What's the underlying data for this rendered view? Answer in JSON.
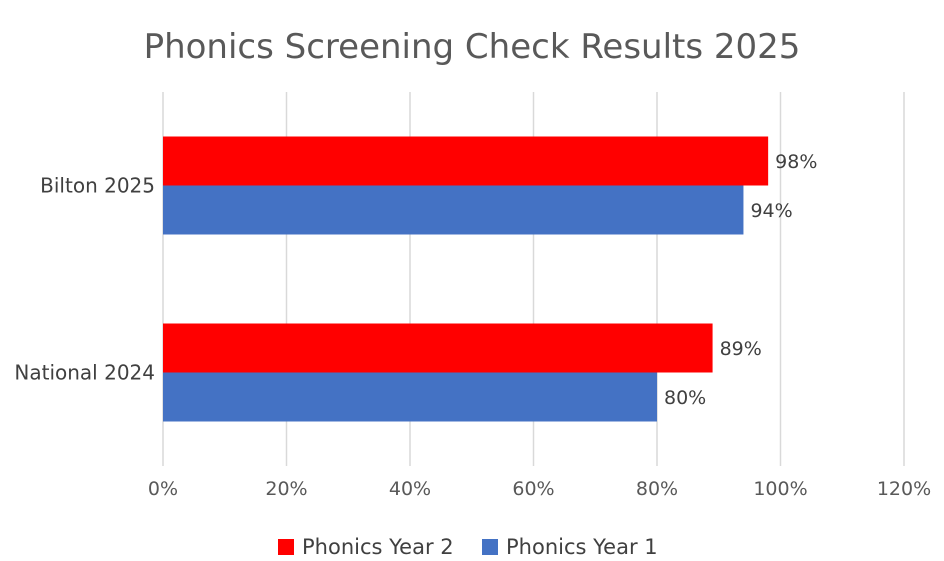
{
  "chart_data": {
    "type": "bar",
    "orientation": "horizontal",
    "title": "Phonics Screening Check Results 2025",
    "categories": [
      "Bilton 2025",
      "National 2024"
    ],
    "series": [
      {
        "name": "Phonics Year 2",
        "values": [
          98,
          89
        ],
        "color": "#ff0000"
      },
      {
        "name": "Phonics Year 1",
        "values": [
          94,
          80
        ],
        "color": "#4472c4"
      }
    ],
    "data_labels": [
      [
        "98%",
        "89%"
      ],
      [
        "94%",
        "80%"
      ]
    ],
    "xlim": [
      0,
      120
    ],
    "x_ticks": [
      0,
      20,
      40,
      60,
      80,
      100,
      120
    ],
    "x_tick_labels": [
      "0%",
      "20%",
      "40%",
      "60%",
      "80%",
      "100%",
      "120%"
    ],
    "grid": "vertical",
    "legend_position": "bottom"
  }
}
